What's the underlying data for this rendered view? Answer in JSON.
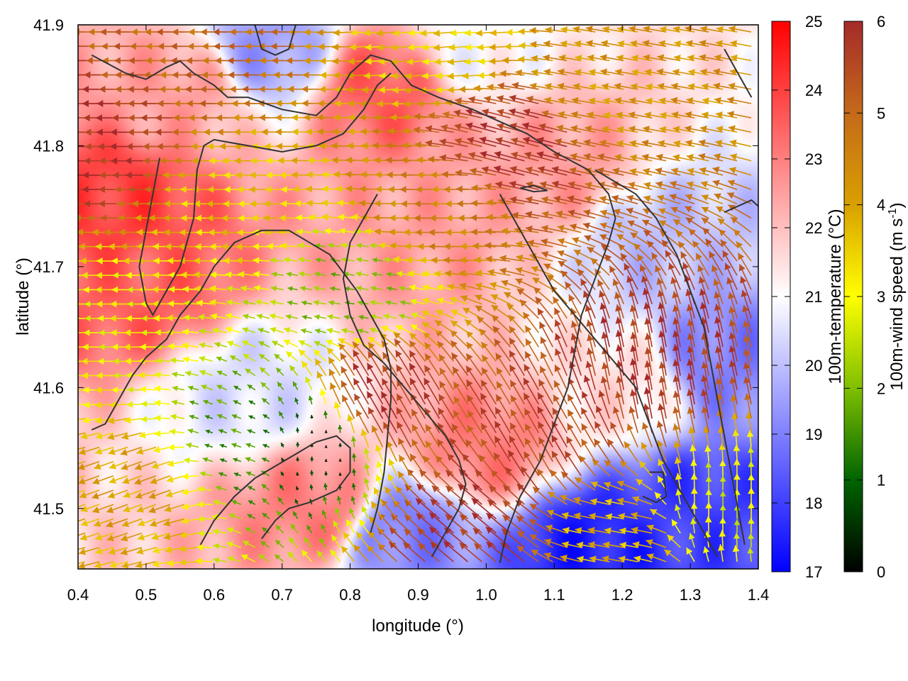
{
  "chart_data": {
    "type": "heatmap",
    "xlabel": "longitude (°)",
    "ylabel": "latitude (°)",
    "xlim": [
      0.4,
      1.4
    ],
    "ylim": [
      41.45,
      41.9
    ],
    "x_ticks": [
      "0.4",
      "0.5",
      "0.6",
      "0.7",
      "0.8",
      "0.9",
      "1.0",
      "1.1",
      "1.2",
      "1.3",
      "1.4"
    ],
    "y_ticks": [
      "41.5",
      "41.6",
      "41.7",
      "41.8",
      "41.9"
    ],
    "grid": false,
    "temperature_colorbar": {
      "label": "100m-temperature (°C)",
      "range": [
        17,
        25
      ],
      "ticks": [
        "17",
        "18",
        "19",
        "20",
        "21",
        "22",
        "23",
        "24",
        "25"
      ],
      "colors": [
        "#0000ff",
        "#ffffff",
        "#ff0000"
      ]
    },
    "wind_colorbar": {
      "label_main": "100m-wind speed (m s",
      "label_sup": "-1",
      "label_end": ")",
      "range": [
        0,
        6
      ],
      "ticks": [
        "0",
        "1",
        "2",
        "3",
        "4",
        "5",
        "6"
      ],
      "colors": [
        "#000000",
        "#006400",
        "#7fbf00",
        "#ffff00",
        "#d9a000",
        "#c46a1a",
        "#a52a2a"
      ]
    },
    "temperature_regions": [
      {
        "lon": 0.45,
        "lat": 41.75,
        "value": 24.0
      },
      {
        "lon": 0.5,
        "lat": 41.68,
        "value": 23.5
      },
      {
        "lon": 0.55,
        "lat": 41.85,
        "value": 22.5
      },
      {
        "lon": 0.68,
        "lat": 41.88,
        "value": 19.5
      },
      {
        "lon": 0.85,
        "lat": 41.85,
        "value": 23.5
      },
      {
        "lon": 0.9,
        "lat": 41.72,
        "value": 22.5
      },
      {
        "lon": 0.65,
        "lat": 41.6,
        "value": 20.5
      },
      {
        "lon": 0.75,
        "lat": 41.5,
        "value": 23.0
      },
      {
        "lon": 0.88,
        "lat": 41.48,
        "value": 19.0
      },
      {
        "lon": 1.0,
        "lat": 41.55,
        "value": 23.0
      },
      {
        "lon": 1.1,
        "lat": 41.78,
        "value": 22.5
      },
      {
        "lon": 1.25,
        "lat": 41.72,
        "value": 20.0
      },
      {
        "lon": 1.3,
        "lat": 41.5,
        "value": 18.0
      },
      {
        "lon": 1.15,
        "lat": 41.47,
        "value": 17.5
      },
      {
        "lon": 1.35,
        "lat": 41.62,
        "value": 19.0
      },
      {
        "lon": 1.2,
        "lat": 41.6,
        "value": 21.5
      },
      {
        "lon": 0.98,
        "lat": 41.88,
        "value": 21.0
      }
    ],
    "wind_regions": [
      {
        "lon": 0.45,
        "lat": 41.8,
        "speed": 5.8,
        "dir": 180
      },
      {
        "lon": 0.45,
        "lat": 41.65,
        "speed": 3.0,
        "dir": 180
      },
      {
        "lon": 0.5,
        "lat": 41.52,
        "speed": 4.0,
        "dir": 200
      },
      {
        "lon": 0.65,
        "lat": 41.75,
        "speed": 3.5,
        "dir": 180
      },
      {
        "lon": 0.65,
        "lat": 41.55,
        "speed": 1.5,
        "dir": 160
      },
      {
        "lon": 0.75,
        "lat": 41.55,
        "speed": 0.4,
        "dir": 90
      },
      {
        "lon": 0.8,
        "lat": 41.68,
        "speed": 2.0,
        "dir": 170
      },
      {
        "lon": 0.85,
        "lat": 41.58,
        "speed": 5.8,
        "dir": 120
      },
      {
        "lon": 1.05,
        "lat": 41.8,
        "speed": 5.8,
        "dir": 165
      },
      {
        "lon": 0.95,
        "lat": 41.75,
        "speed": 4.5,
        "dir": 180
      },
      {
        "lon": 0.95,
        "lat": 41.88,
        "speed": 3.5,
        "dir": 185
      },
      {
        "lon": 1.2,
        "lat": 41.85,
        "speed": 4.2,
        "dir": 170
      },
      {
        "lon": 1.25,
        "lat": 41.6,
        "speed": 5.8,
        "dir": 100
      },
      {
        "lon": 1.1,
        "lat": 41.55,
        "speed": 5.5,
        "dir": 120
      },
      {
        "lon": 1.35,
        "lat": 41.5,
        "speed": 2.8,
        "dir": 90
      },
      {
        "lon": 1.2,
        "lat": 41.48,
        "speed": 3.8,
        "dir": 170
      },
      {
        "lon": 1.0,
        "lat": 41.48,
        "speed": 5.8,
        "dir": 140
      },
      {
        "lon": 0.6,
        "lat": 41.88,
        "speed": 5.0,
        "dir": 180
      }
    ],
    "contours": [
      [
        [
          0.42,
          41.875
        ],
        [
          0.47,
          41.86
        ],
        [
          0.5,
          41.855
        ],
        [
          0.53,
          41.865
        ],
        [
          0.55,
          41.87
        ],
        [
          0.57,
          41.86
        ],
        [
          0.6,
          41.85
        ],
        [
          0.62,
          41.84
        ],
        [
          0.65,
          41.84
        ],
        [
          0.7,
          41.83
        ],
        [
          0.75,
          41.825
        ],
        [
          0.78,
          41.84
        ],
        [
          0.8,
          41.86
        ],
        [
          0.83,
          41.875
        ],
        [
          0.86,
          41.87
        ],
        [
          0.89,
          41.85
        ],
        [
          0.93,
          41.84
        ],
        [
          0.98,
          41.83
        ],
        [
          1.02,
          41.82
        ],
        [
          1.06,
          41.81
        ],
        [
          1.1,
          41.795
        ],
        [
          1.15,
          41.78
        ],
        [
          1.18,
          41.76
        ],
        [
          1.19,
          41.74
        ],
        [
          1.18,
          41.72
        ],
        [
          1.16,
          41.69
        ],
        [
          1.14,
          41.66
        ],
        [
          1.13,
          41.63
        ],
        [
          1.12,
          41.6
        ],
        [
          1.1,
          41.57
        ],
        [
          1.08,
          41.54
        ],
        [
          1.05,
          41.51
        ],
        [
          1.03,
          41.48
        ],
        [
          1.02,
          41.455
        ]
      ],
      [
        [
          0.52,
          41.79
        ],
        [
          0.51,
          41.76
        ],
        [
          0.5,
          41.73
        ],
        [
          0.49,
          41.7
        ],
        [
          0.5,
          41.67
        ],
        [
          0.51,
          41.66
        ],
        [
          0.53,
          41.68
        ],
        [
          0.55,
          41.7
        ],
        [
          0.57,
          41.74
        ],
        [
          0.575,
          41.78
        ],
        [
          0.585,
          41.8
        ],
        [
          0.6,
          41.805
        ],
        [
          0.65,
          41.8
        ],
        [
          0.7,
          41.795
        ],
        [
          0.75,
          41.8
        ],
        [
          0.79,
          41.81
        ],
        [
          0.82,
          41.83
        ],
        [
          0.84,
          41.85
        ],
        [
          0.86,
          41.86
        ]
      ],
      [
        [
          0.42,
          41.565
        ],
        [
          0.44,
          41.57
        ],
        [
          0.46,
          41.59
        ],
        [
          0.48,
          41.61
        ],
        [
          0.5,
          41.625
        ],
        [
          0.53,
          41.64
        ],
        [
          0.55,
          41.66
        ],
        [
          0.58,
          41.68
        ],
        [
          0.6,
          41.7
        ],
        [
          0.63,
          41.72
        ],
        [
          0.67,
          41.73
        ],
        [
          0.71,
          41.73
        ],
        [
          0.74,
          41.72
        ],
        [
          0.77,
          41.71
        ],
        [
          0.79,
          41.695
        ],
        [
          0.81,
          41.68
        ],
        [
          0.83,
          41.66
        ],
        [
          0.85,
          41.64
        ],
        [
          0.86,
          41.615
        ],
        [
          0.86,
          41.59
        ],
        [
          0.855,
          41.56
        ],
        [
          0.85,
          41.53
        ],
        [
          0.84,
          41.5
        ],
        [
          0.83,
          41.48
        ]
      ],
      [
        [
          0.84,
          41.76
        ],
        [
          0.82,
          41.74
        ],
        [
          0.8,
          41.72
        ],
        [
          0.79,
          41.69
        ],
        [
          0.8,
          41.66
        ],
        [
          0.82,
          41.635
        ],
        [
          0.85,
          41.62
        ],
        [
          0.88,
          41.6
        ],
        [
          0.91,
          41.58
        ],
        [
          0.94,
          41.56
        ],
        [
          0.96,
          41.54
        ],
        [
          0.97,
          41.52
        ],
        [
          0.96,
          41.5
        ],
        [
          0.94,
          41.48
        ],
        [
          0.92,
          41.46
        ]
      ],
      [
        [
          0.58,
          41.47
        ],
        [
          0.6,
          41.49
        ],
        [
          0.63,
          41.51
        ],
        [
          0.66,
          41.525
        ],
        [
          0.69,
          41.535
        ],
        [
          0.72,
          41.545
        ],
        [
          0.75,
          41.555
        ],
        [
          0.78,
          41.56
        ],
        [
          0.8,
          41.55
        ],
        [
          0.8,
          41.53
        ],
        [
          0.78,
          41.515
        ],
        [
          0.74,
          41.505
        ],
        [
          0.71,
          41.5
        ],
        [
          0.69,
          41.49
        ],
        [
          0.67,
          41.475
        ]
      ],
      [
        [
          1.02,
          41.76
        ],
        [
          1.04,
          41.74
        ],
        [
          1.06,
          41.72
        ],
        [
          1.08,
          41.7
        ],
        [
          1.1,
          41.68
        ],
        [
          1.13,
          41.66
        ],
        [
          1.16,
          41.64
        ],
        [
          1.19,
          41.62
        ],
        [
          1.22,
          41.6
        ],
        [
          1.24,
          41.57
        ],
        [
          1.26,
          41.54
        ],
        [
          1.28,
          41.52
        ],
        [
          1.3,
          41.5
        ],
        [
          1.32,
          41.48
        ],
        [
          1.34,
          41.46
        ]
      ],
      [
        [
          1.16,
          41.78
        ],
        [
          1.19,
          41.77
        ],
        [
          1.22,
          41.76
        ],
        [
          1.25,
          41.74
        ],
        [
          1.28,
          41.71
        ],
        [
          1.3,
          41.68
        ],
        [
          1.32,
          41.65
        ],
        [
          1.33,
          41.62
        ],
        [
          1.34,
          41.59
        ],
        [
          1.35,
          41.56
        ],
        [
          1.36,
          41.53
        ],
        [
          1.37,
          41.5
        ],
        [
          1.38,
          41.47
        ]
      ],
      [
        [
          0.66,
          41.9
        ],
        [
          0.67,
          41.88
        ],
        [
          0.69,
          41.875
        ],
        [
          0.71,
          41.88
        ],
        [
          0.72,
          41.9
        ]
      ],
      [
        [
          1.05,
          41.765
        ],
        [
          1.07,
          41.762
        ],
        [
          1.09,
          41.763
        ],
        [
          1.07,
          41.767
        ],
        [
          1.05,
          41.765
        ]
      ],
      [
        [
          1.24,
          41.53
        ],
        [
          1.26,
          41.53
        ],
        [
          1.265,
          41.51
        ],
        [
          1.25,
          41.505
        ],
        [
          1.23,
          41.51
        ]
      ],
      [
        [
          1.35,
          41.88
        ],
        [
          1.36,
          41.87
        ],
        [
          1.37,
          41.86
        ],
        [
          1.38,
          41.85
        ],
        [
          1.39,
          41.84
        ]
      ],
      [
        [
          1.35,
          41.745
        ],
        [
          1.37,
          41.75
        ],
        [
          1.39,
          41.755
        ],
        [
          1.4,
          41.75
        ]
      ]
    ]
  }
}
